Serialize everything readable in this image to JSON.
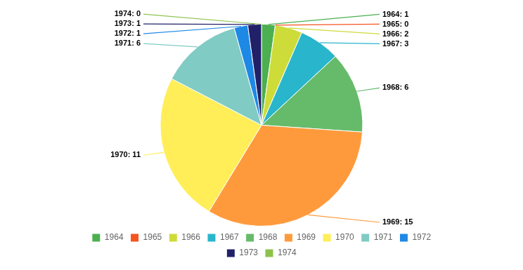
{
  "chart_data": {
    "type": "pie",
    "categories": [
      "1964",
      "1965",
      "1966",
      "1967",
      "1968",
      "1969",
      "1970",
      "1971",
      "1972",
      "1973",
      "1974"
    ],
    "values": [
      1,
      0,
      2,
      3,
      6,
      15,
      11,
      6,
      1,
      1,
      0
    ],
    "value_labels": [
      "1964: 1",
      "1965: 0",
      "1966: 2",
      "1967: 3",
      "1968: 6",
      "1969: 15",
      "1970: 11",
      "1971: 6",
      "1972: 1",
      "1973: 1",
      "1974: 0"
    ],
    "colors": [
      "#4caf50",
      "#f55320",
      "#cddc39",
      "#29b6cc",
      "#66bb6a",
      "#ff9a3c",
      "#ffee58",
      "#80cbc4",
      "#1e88e5",
      "#212169",
      "#8bc34a"
    ],
    "data_labels": true,
    "legend": "bottom"
  }
}
